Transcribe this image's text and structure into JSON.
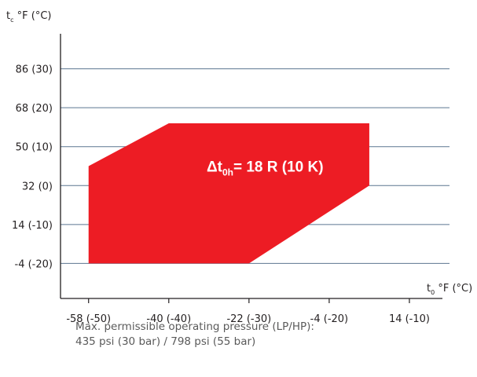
{
  "chart_data": {
    "type": "area",
    "y_axis_title": {
      "main": "t",
      "sub": "c",
      "rest": " °F (°C)"
    },
    "x_axis_title": {
      "main": "t",
      "sub": "0",
      "rest": " °F (°C)"
    },
    "x_ticks": [
      {
        "value": -50,
        "label": "-58 (-50)"
      },
      {
        "value": -40,
        "label": "-40 (-40)"
      },
      {
        "value": -30,
        "label": "-22 (-30)"
      },
      {
        "value": -20,
        "label": "-4 (-20)"
      },
      {
        "value": -10,
        "label": "14 (-10)"
      }
    ],
    "y_ticks": [
      {
        "value": -20,
        "label": "-4 (-20)"
      },
      {
        "value": -10,
        "label": "14 (-10)"
      },
      {
        "value": 0,
        "label": "32 (0)"
      },
      {
        "value": 10,
        "label": "50 (10)"
      },
      {
        "value": 20,
        "label": "68 (20)"
      },
      {
        "value": 30,
        "label": "86 (30)"
      }
    ],
    "xlim": [
      -53.5,
      -5
    ],
    "ylim": [
      -29,
      39
    ],
    "grid": "horizontal",
    "series": [
      {
        "color": "#ed1c24",
        "points_celsius": [
          [
            -50,
            -20
          ],
          [
            -50,
            5
          ],
          [
            -40,
            16
          ],
          [
            -15,
            16
          ],
          [
            -15,
            0
          ],
          [
            -30,
            -20
          ]
        ]
      }
    ],
    "annotation": {
      "prefix": "Δt",
      "sub": "0h",
      "text": "= 18 R (10 K)",
      "x": -28,
      "y": 5
    }
  },
  "note": {
    "line1": "Max. permissible operating pressure (LP/HP):",
    "line2": "435 psi (30 bar) / 798 psi (55 bar)"
  }
}
